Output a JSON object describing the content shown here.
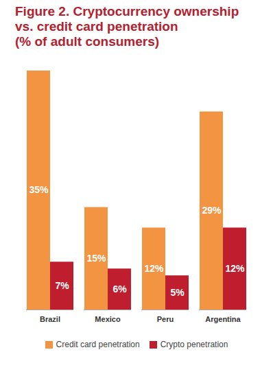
{
  "chart_data": {
    "type": "bar",
    "title": "Figure 2. Cryptocurrency ownership vs. credit card penetration",
    "subtitle": "(% of adult consumers)",
    "categories": [
      "Brazil",
      "Mexico",
      "Peru",
      "Argentina"
    ],
    "series": [
      {
        "name": "Credit card penetration",
        "color": "#F39443",
        "values": [
          35,
          15,
          12,
          29
        ],
        "value_labels": [
          "35%",
          "15%",
          "12%",
          "29%"
        ]
      },
      {
        "name": "Crypto penetration",
        "color": "#BE1E2D",
        "values": [
          7,
          6,
          5,
          12
        ],
        "value_labels": [
          "7%",
          "6%",
          "5%",
          "12%"
        ]
      }
    ],
    "ylim": [
      0,
      35
    ],
    "data_labels": true,
    "tick_labels": "x",
    "legend": "bottom"
  }
}
